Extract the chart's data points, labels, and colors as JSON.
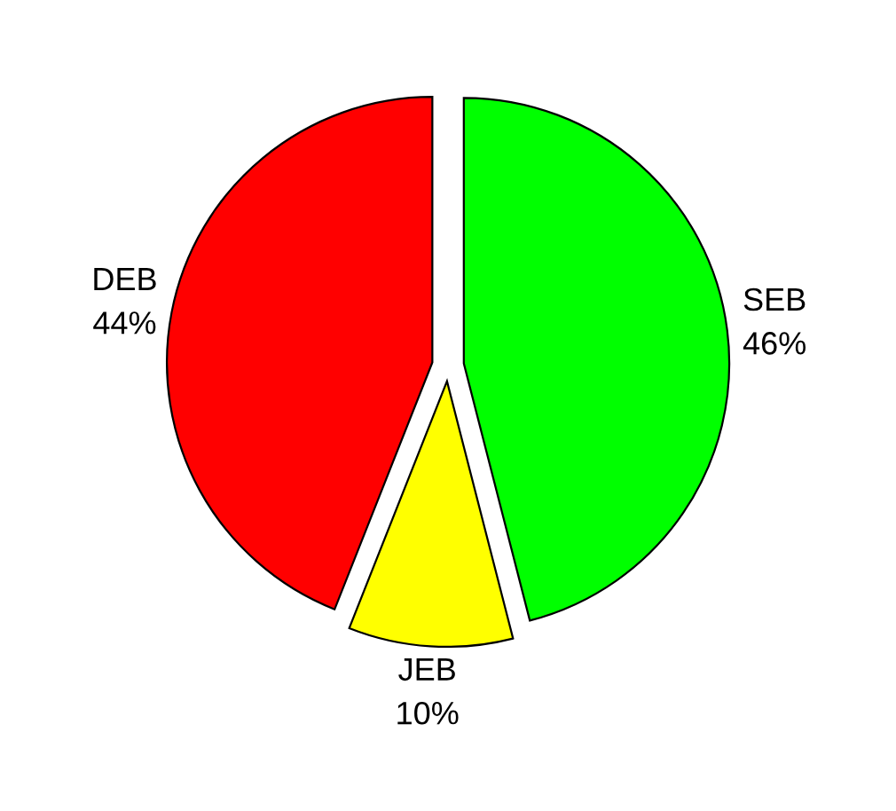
{
  "chart_data": {
    "type": "pie",
    "categories": [
      "SEB",
      "JEB",
      "DEB"
    ],
    "values": [
      46,
      10,
      44
    ],
    "value_labels": [
      "46%",
      "10%",
      "44%"
    ],
    "colors": [
      "#00ff00",
      "#ffff00",
      "#ff0000"
    ]
  }
}
